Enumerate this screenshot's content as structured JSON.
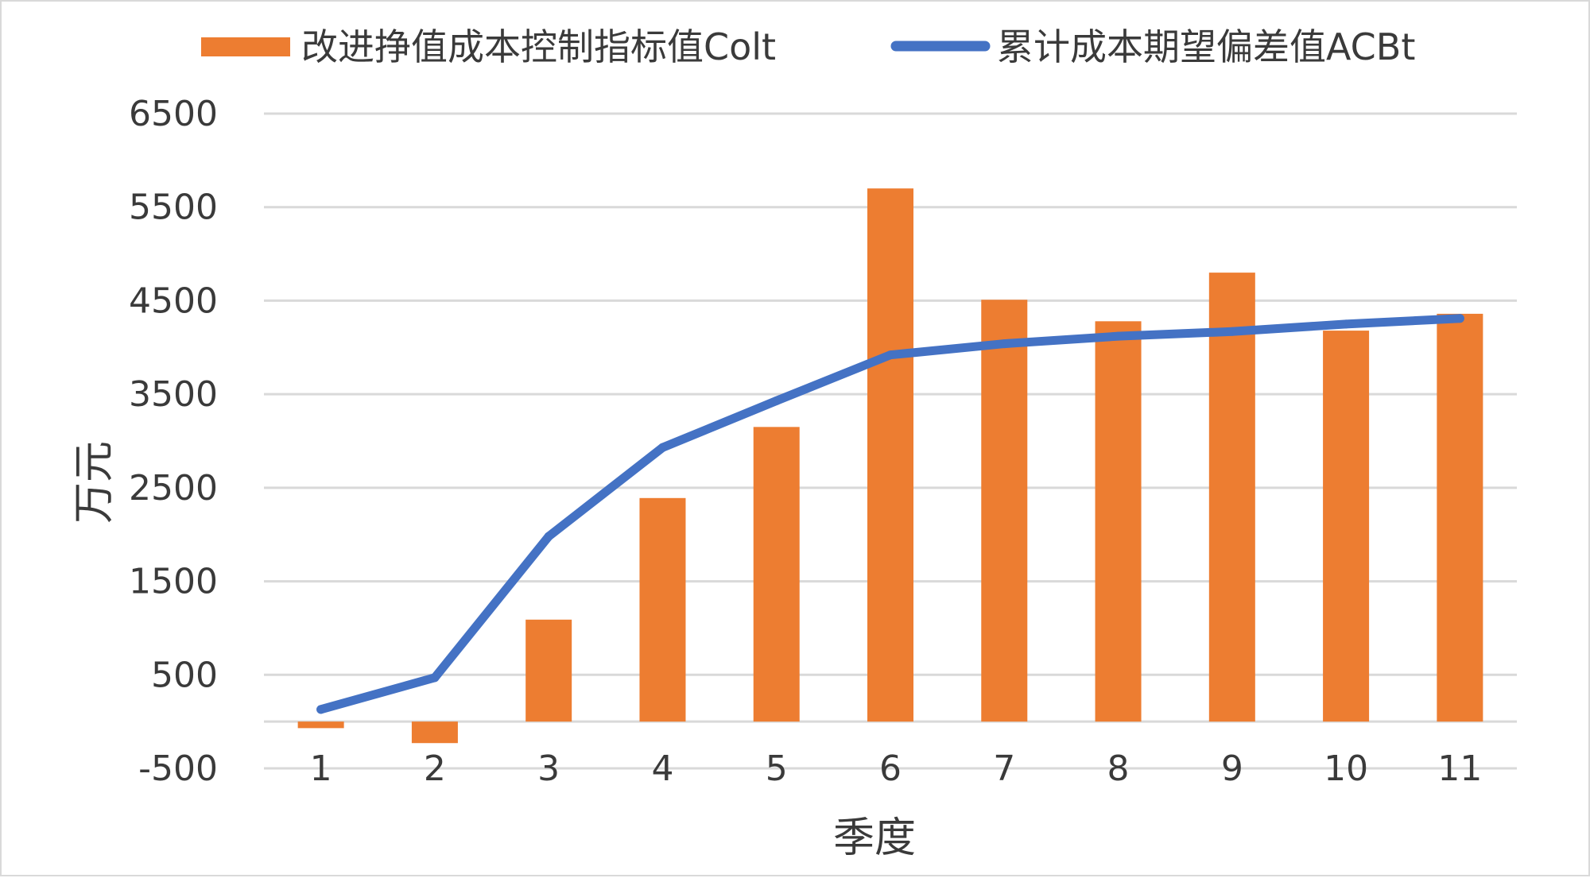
{
  "chart_data": {
    "type": "bar",
    "categories": [
      "1",
      "2",
      "3",
      "4",
      "5",
      "6",
      "7",
      "8",
      "9",
      "10",
      "11"
    ],
    "series": [
      {
        "name": "改进挣值成本控制指标值Colt",
        "kind": "bar",
        "color": "#ED7D31",
        "values": [
          -70,
          -230,
          1090,
          2390,
          3150,
          5700,
          4510,
          4280,
          4800,
          4180,
          4360
        ]
      },
      {
        "name": "累计成本期望偏差值ACBt",
        "kind": "line",
        "color": "#4472C4",
        "values": [
          130,
          470,
          1980,
          2930,
          3430,
          3920,
          4040,
          4120,
          4170,
          4250,
          4310
        ]
      }
    ],
    "title": "",
    "xlabel": "季度",
    "ylabel": "万元",
    "ylim": [
      -500,
      6500
    ],
    "yticks": [
      -500,
      500,
      1500,
      2500,
      3500,
      4500,
      5500,
      6500
    ],
    "grid": true,
    "legend_position": "top"
  }
}
